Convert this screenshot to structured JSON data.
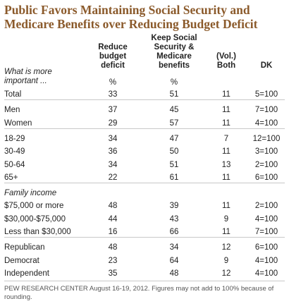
{
  "title": [
    "Public Favors Maintaining Social Security and",
    "Medicare Benefits over Reducing Budget Deficit"
  ],
  "table": {
    "columns": [
      "Reduce budget deficit",
      "Keep Social Security & Medicare benefits",
      "(Vol.) Both",
      "DK"
    ],
    "question": "What is more important ...",
    "units": [
      "%",
      "%"
    ],
    "sections": [
      {
        "rows": [
          [
            "Total",
            33,
            51,
            11,
            "5=100"
          ]
        ]
      },
      {
        "rows": [
          [
            "Men",
            37,
            45,
            11,
            "7=100"
          ],
          [
            "Women",
            29,
            57,
            11,
            "4=100"
          ]
        ]
      },
      {
        "rows": [
          [
            "18-29",
            34,
            47,
            7,
            "12=100"
          ],
          [
            "30-49",
            36,
            50,
            11,
            "3=100"
          ],
          [
            "50-64",
            34,
            51,
            13,
            "2=100"
          ],
          [
            "65+",
            22,
            61,
            11,
            "6=100"
          ]
        ]
      },
      {
        "heading": "Family income",
        "rows": [
          [
            "$75,000 or more",
            48,
            39,
            11,
            "2=100"
          ],
          [
            "$30,000-$75,000",
            44,
            43,
            9,
            "4=100"
          ],
          [
            "Less than $30,000",
            16,
            66,
            11,
            "7=100"
          ]
        ]
      },
      {
        "rows": [
          [
            "Republican",
            48,
            34,
            12,
            "6=100"
          ],
          [
            "Democrat",
            23,
            64,
            9,
            "4=100"
          ],
          [
            "Independent",
            35,
            48,
            12,
            "4=100"
          ]
        ]
      }
    ]
  },
  "footnote": "PEW RESEARCH CENTER August 16-19, 2012. Figures may not add to 100% because of rounding."
}
